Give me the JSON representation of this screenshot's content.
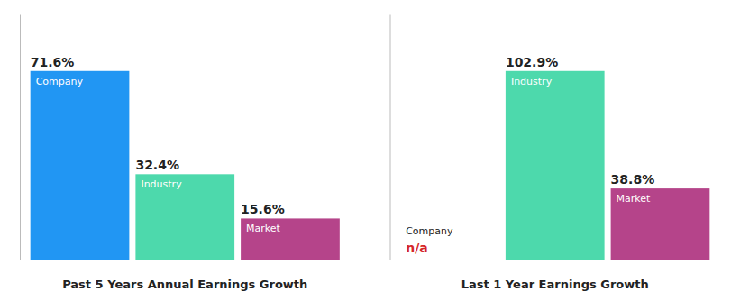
{
  "chart_data": [
    {
      "type": "bar",
      "title": "Past 5 Years Annual Earnings Growth",
      "categories": [
        "Company",
        "Industry",
        "Market"
      ],
      "values": [
        71.6,
        32.4,
        15.6
      ],
      "value_labels": [
        "71.6%",
        "32.4%",
        "15.6%"
      ],
      "colors": [
        "#2196f3",
        "#4dd9ac",
        "#b5448a"
      ],
      "ylim": [
        0,
        93.08
      ],
      "data_labels": true,
      "tick_labels": false,
      "grid": false
    },
    {
      "type": "bar",
      "title": "Last 1 Year Earnings Growth",
      "categories": [
        "Company",
        "Industry",
        "Market"
      ],
      "values": [
        null,
        102.9,
        38.8
      ],
      "value_labels": [
        "n/a",
        "102.9%",
        "38.8%"
      ],
      "colors": [
        "#2196f3",
        "#4dd9ac",
        "#b5448a"
      ],
      "ylim": [
        0,
        133.77
      ],
      "data_labels": true,
      "tick_labels": false,
      "grid": false
    }
  ]
}
